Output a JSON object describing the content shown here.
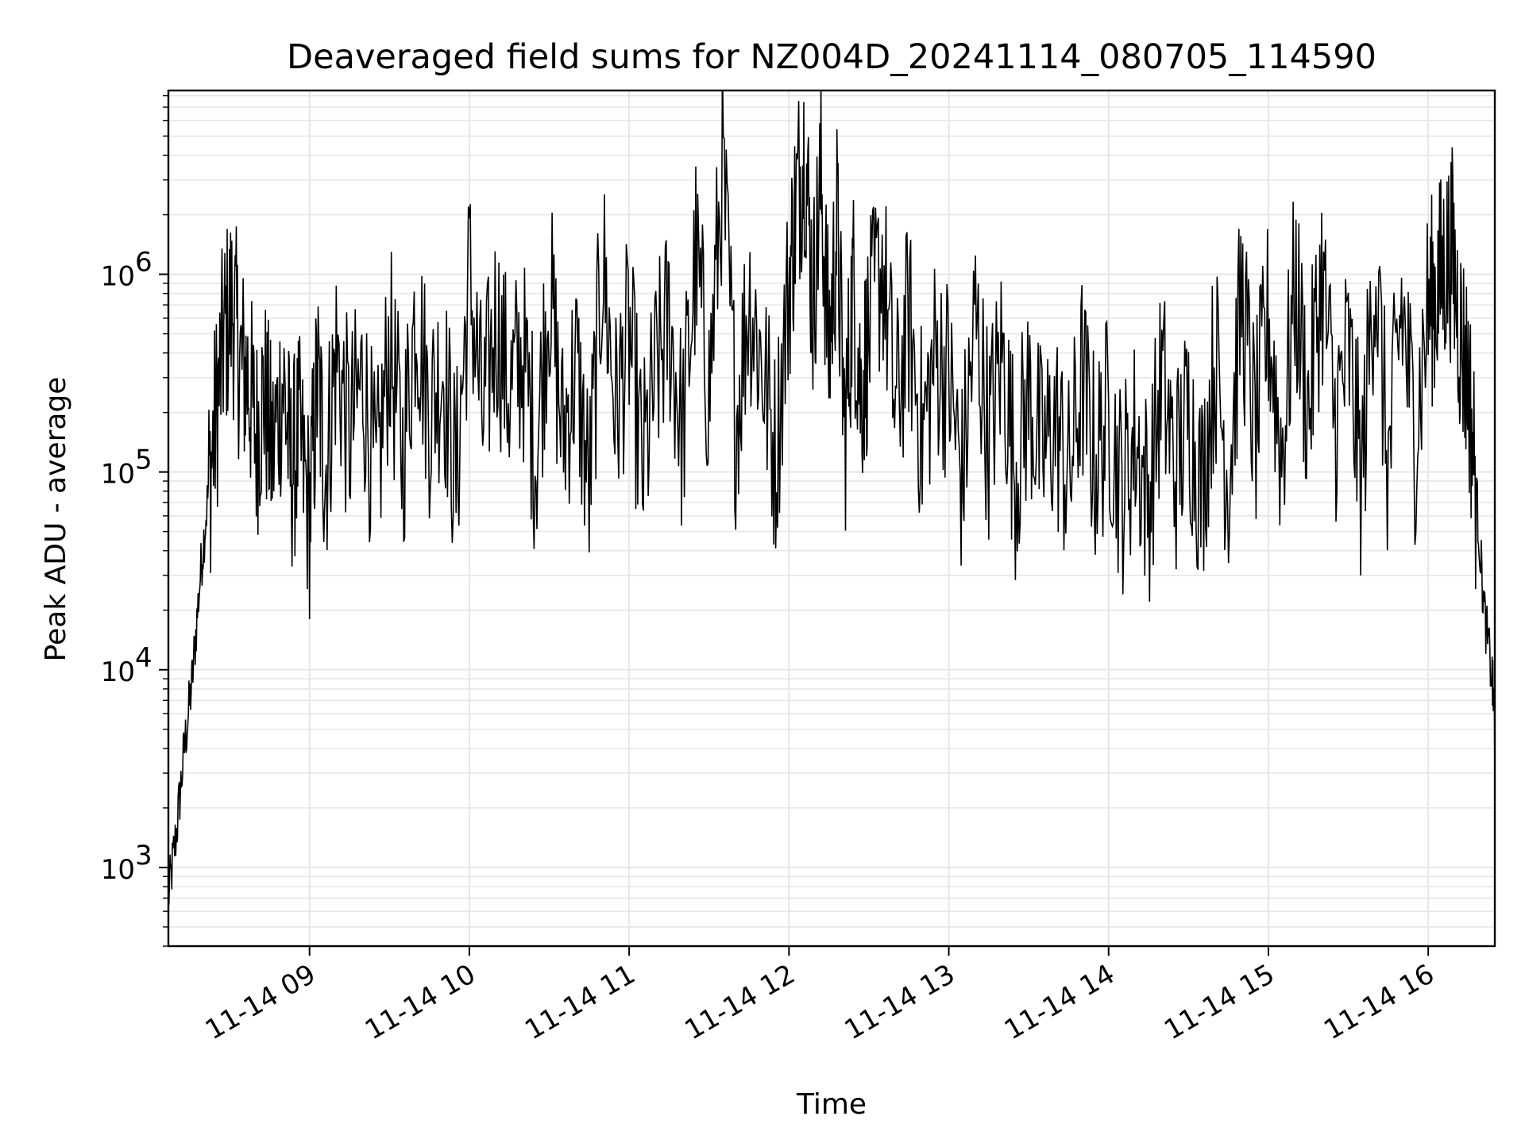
{
  "chart_data": {
    "type": "line",
    "title": "Deaveraged field sums for NZ004D_20241114_080705_114590",
    "xlabel": "Time",
    "ylabel": "Peak ADU - average",
    "yscale": "log",
    "ylim": [
      400,
      8500000
    ],
    "xlim": [
      "2024-11-14T08:07:00",
      "2024-11-14T16:25:00"
    ],
    "grid": true,
    "line_color": "#000000",
    "grid_color": "#e6e6e6",
    "x_ticks": [
      {
        "value": "2024-11-14T09:00:00",
        "label": "11-14 09"
      },
      {
        "value": "2024-11-14T10:00:00",
        "label": "11-14 10"
      },
      {
        "value": "2024-11-14T11:00:00",
        "label": "11-14 11"
      },
      {
        "value": "2024-11-14T12:00:00",
        "label": "11-14 12"
      },
      {
        "value": "2024-11-14T13:00:00",
        "label": "11-14 13"
      },
      {
        "value": "2024-11-14T14:00:00",
        "label": "11-14 14"
      },
      {
        "value": "2024-11-14T15:00:00",
        "label": "11-14 15"
      },
      {
        "value": "2024-11-14T16:00:00",
        "label": "11-14 16"
      }
    ],
    "y_ticks": [
      {
        "value": 1000,
        "base": "10",
        "exp": "3"
      },
      {
        "value": 10000,
        "base": "10",
        "exp": "4"
      },
      {
        "value": 100000,
        "base": "10",
        "exp": "5"
      },
      {
        "value": 1000000,
        "base": "10",
        "exp": "6"
      }
    ],
    "series": [
      {
        "x": [
          "08:07",
          "08:10",
          "08:13",
          "08:16",
          "08:19",
          "08:22",
          "08:25",
          "08:28",
          "08:31",
          "08:34",
          "08:37",
          "08:40",
          "08:43",
          "08:46",
          "08:50",
          "08:53",
          "08:56",
          "09:00",
          "09:03",
          "09:06",
          "09:10",
          "09:15",
          "09:20",
          "09:25",
          "09:30",
          "09:35",
          "09:40",
          "09:45",
          "09:50",
          "09:55",
          "10:00",
          "10:05",
          "10:10",
          "10:15",
          "10:20",
          "10:25",
          "10:30",
          "10:35",
          "10:40",
          "10:45",
          "10:50",
          "10:55",
          "11:00",
          "11:05",
          "11:10",
          "11:15",
          "11:20",
          "11:25",
          "11:30",
          "11:35",
          "11:40",
          "11:45",
          "11:50",
          "11:55",
          "12:00",
          "12:03",
          "12:06",
          "12:09",
          "12:12",
          "12:15",
          "12:18",
          "12:21",
          "12:24",
          "12:27",
          "12:30",
          "12:35",
          "12:40",
          "12:45",
          "12:50",
          "12:55",
          "13:00",
          "13:05",
          "13:10",
          "13:15",
          "13:20",
          "13:25",
          "13:30",
          "13:35",
          "13:40",
          "13:45",
          "13:50",
          "13:55",
          "14:00",
          "14:05",
          "14:10",
          "14:15",
          "14:20",
          "14:25",
          "14:30",
          "14:35",
          "14:40",
          "14:45",
          "14:50",
          "14:55",
          "15:00",
          "15:05",
          "15:10",
          "15:15",
          "15:20",
          "15:25",
          "15:30",
          "15:35",
          "15:40",
          "15:45",
          "15:50",
          "15:55",
          "16:00",
          "16:03",
          "16:06",
          "16:09",
          "16:12",
          "16:15",
          "16:18",
          "16:21",
          "16:24",
          "16:25"
        ],
        "y": [
          700,
          1500,
          4000,
          9000,
          30000,
          80000,
          200000,
          500000,
          700000,
          350000,
          300000,
          150000,
          250000,
          120000,
          300000,
          100000,
          150000,
          60000,
          300000,
          100000,
          400000,
          150000,
          300000,
          80000,
          450000,
          120000,
          700000,
          200000,
          350000,
          90000,
          1000000,
          180000,
          600000,
          250000,
          400000,
          120000,
          900000,
          150000,
          350000,
          80000,
          1200000,
          200000,
          500000,
          100000,
          300000,
          600000,
          150000,
          1200000,
          250000,
          3500000,
          180000,
          800000,
          350000,
          120000,
          900000,
          2500000,
          4500000,
          700000,
          3000000,
          400000,
          1800000,
          150000,
          900000,
          250000,
          500000,
          1200000,
          200000,
          600000,
          150000,
          400000,
          300000,
          90000,
          600000,
          150000,
          400000,
          100000,
          250000,
          120000,
          180000,
          90000,
          300000,
          110000,
          200000,
          80000,
          150000,
          70000,
          300000,
          100000,
          200000,
          80000,
          400000,
          90000,
          800000,
          150000,
          600000,
          120000,
          900000,
          200000,
          1000000,
          180000,
          400000,
          90000,
          1200000,
          100000,
          700000,
          150000,
          700000,
          800000,
          1100000,
          1300000,
          500000,
          300000,
          80000,
          20000,
          9000,
          5000
        ]
      }
    ]
  }
}
